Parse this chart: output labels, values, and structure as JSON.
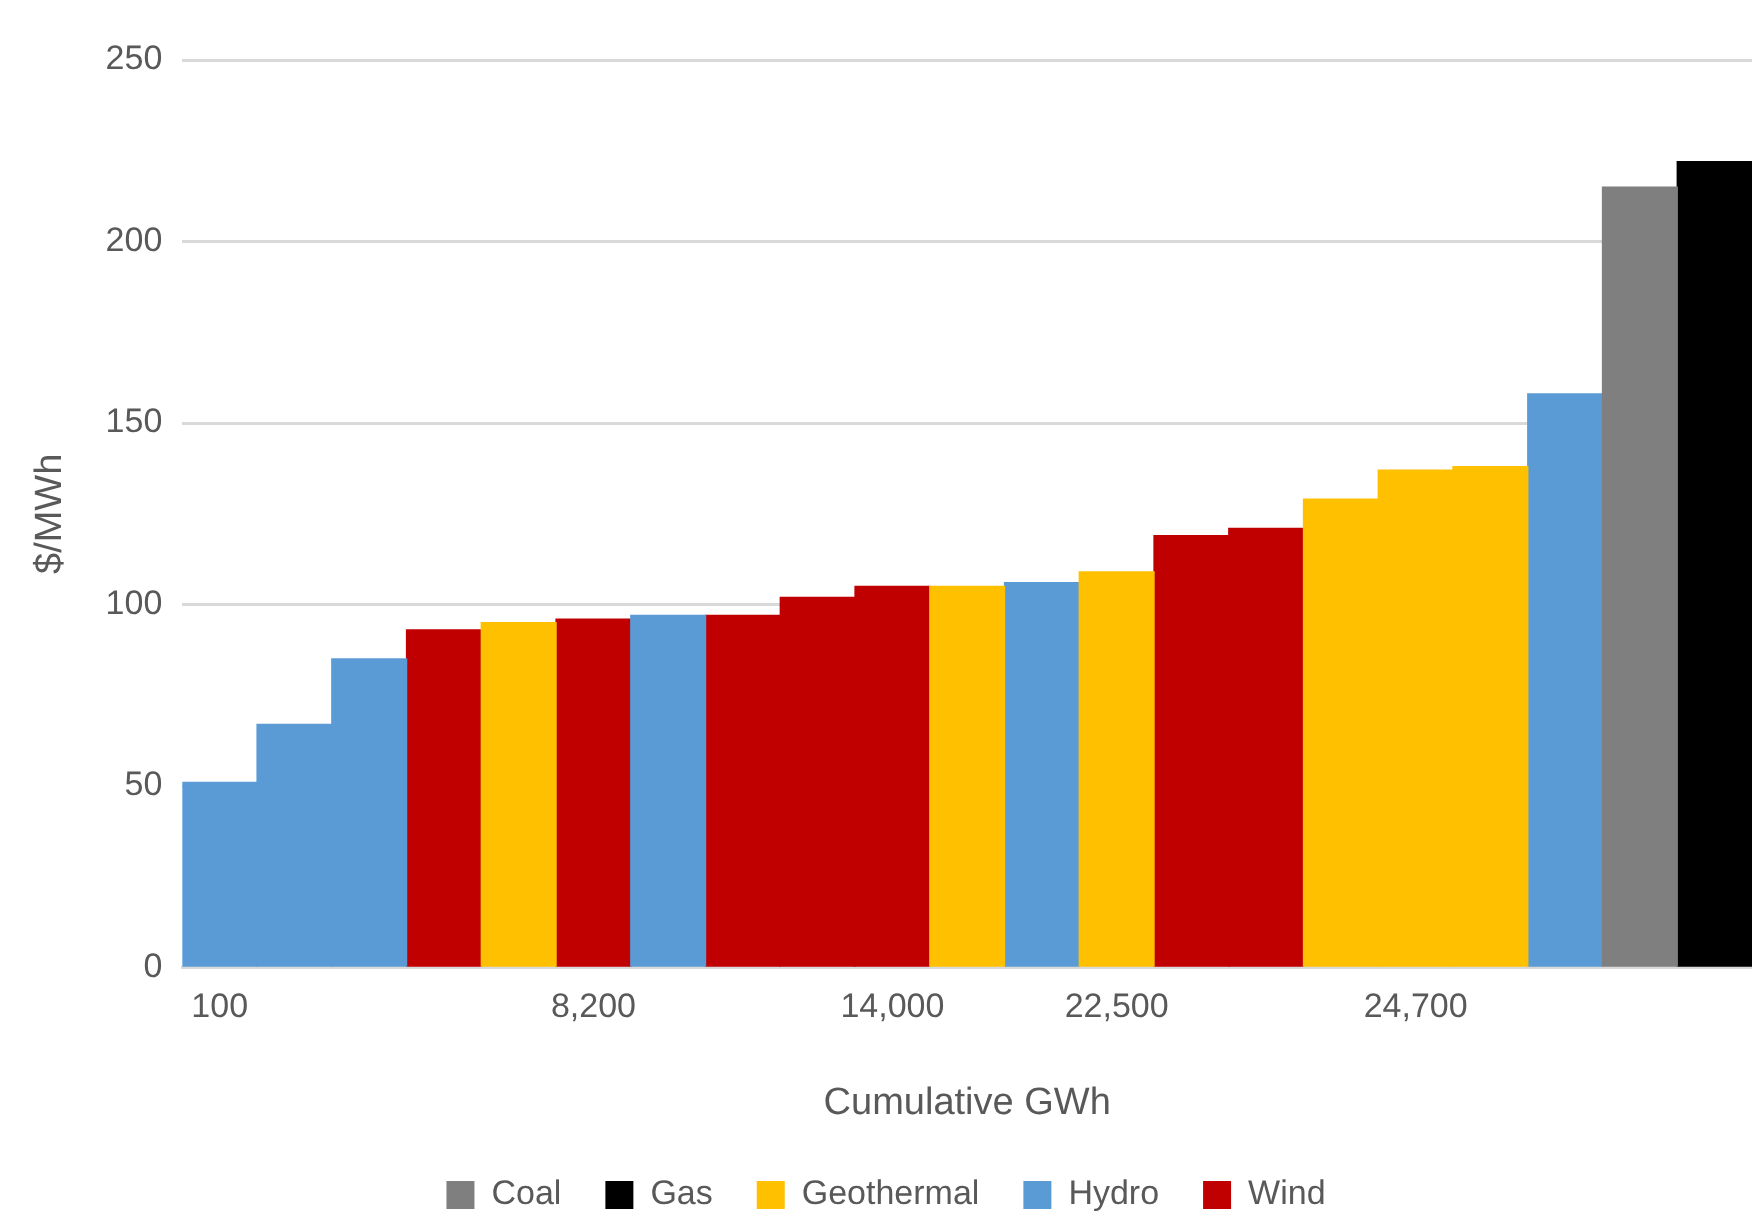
{
  "chart_data": {
    "type": "bar",
    "stacked": true,
    "xlabel": "Cumulative GWh",
    "ylabel": "$/MWh",
    "categories": [
      "100",
      null,
      null,
      null,
      null,
      "8,200",
      null,
      null,
      null,
      "14,000",
      null,
      null,
      "22,500",
      null,
      null,
      null,
      "24,700",
      null,
      null,
      null,
      null
    ],
    "series": [
      {
        "name": "Coal",
        "color": "#7f7f7f",
        "values": [
          null,
          null,
          null,
          null,
          null,
          null,
          null,
          null,
          null,
          null,
          null,
          null,
          null,
          null,
          null,
          null,
          null,
          null,
          null,
          215,
          null
        ]
      },
      {
        "name": "Gas",
        "color": "#000000",
        "values": [
          null,
          null,
          null,
          null,
          null,
          null,
          null,
          null,
          null,
          null,
          null,
          null,
          null,
          null,
          null,
          null,
          null,
          null,
          null,
          null,
          222
        ]
      },
      {
        "name": "Geothermal",
        "color": "#ffc000",
        "values": [
          null,
          null,
          null,
          null,
          95,
          null,
          null,
          null,
          null,
          null,
          105,
          null,
          109,
          null,
          null,
          129,
          137,
          138,
          null,
          null,
          null
        ]
      },
      {
        "name": "Hydro",
        "color": "#5b9bd5",
        "values": [
          51,
          67,
          85,
          null,
          null,
          null,
          97,
          null,
          null,
          null,
          null,
          106,
          null,
          null,
          null,
          null,
          null,
          null,
          158,
          null,
          null
        ]
      },
      {
        "name": "Wind",
        "color": "#c00000",
        "values": [
          null,
          null,
          null,
          93,
          null,
          96,
          null,
          97,
          102,
          105,
          null,
          null,
          null,
          119,
          121,
          null,
          null,
          null,
          null,
          null,
          null
        ]
      }
    ],
    "ylim": [
      0,
      250
    ],
    "yticks": [
      0,
      50,
      100,
      150,
      200,
      250
    ],
    "grid": "y",
    "legend": "bottom"
  }
}
